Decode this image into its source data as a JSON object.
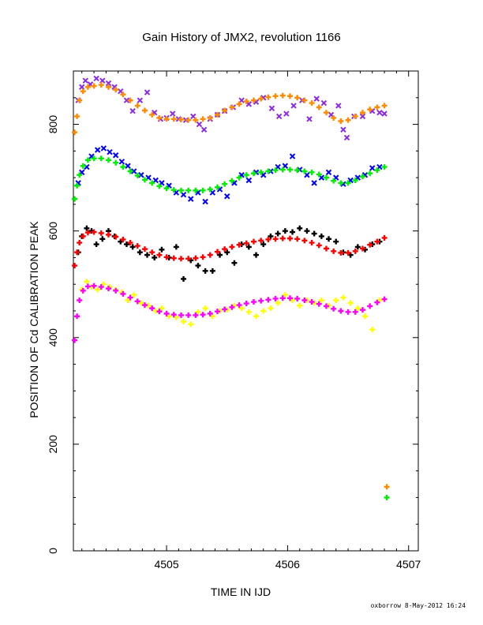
{
  "chart_data": {
    "type": "scatter",
    "title": "Gain History of JMX2, revolution 1166",
    "xlabel": "TIME IN IJD",
    "ylabel": "POSITION OF Cd CALIBRATION PEAK",
    "xlim": [
      4504.23,
      4507.08
    ],
    "ylim": [
      0,
      900
    ],
    "x_ticks": [
      4505,
      4506,
      4507
    ],
    "y_ticks": [
      0,
      200,
      400,
      600,
      800
    ],
    "footer": "oxborrow  8-May-2012 16:24",
    "series": [
      {
        "color": "#8a2be2",
        "marker": "x",
        "x": [
          4504.27,
          4504.3,
          4504.33,
          4504.37,
          4504.42,
          4504.47,
          4504.52,
          4504.57,
          4504.62,
          4504.67,
          4504.72,
          4504.78,
          4504.84,
          4504.9,
          4504.95,
          4505.0,
          4505.05,
          4505.1,
          4505.16,
          4505.22,
          4505.27,
          4505.31,
          4505.36,
          4505.42,
          4505.48,
          4505.55,
          4505.62,
          4505.68,
          4505.74,
          4505.8,
          4505.87,
          4505.93,
          4505.99,
          4506.05,
          4506.12,
          4506.18,
          4506.24,
          4506.3,
          4506.36,
          4506.42,
          4506.46,
          4506.49,
          4506.55,
          4506.62,
          4506.7,
          4506.76,
          4506.8
        ],
        "y": [
          845,
          870,
          882,
          875,
          886,
          882,
          877,
          870,
          862,
          845,
          825,
          845,
          860,
          822,
          810,
          812,
          820,
          810,
          808,
          815,
          800,
          790,
          810,
          818,
          825,
          832,
          845,
          838,
          842,
          850,
          830,
          815,
          820,
          835,
          845,
          810,
          848,
          840,
          818,
          835,
          790,
          775,
          815,
          815,
          825,
          822,
          820
        ]
      },
      {
        "color": "#ff8c00",
        "marker": "+",
        "x": [
          4504.24,
          4504.26,
          4504.28,
          4504.31,
          4504.35,
          4504.4,
          4504.46,
          4504.52,
          4504.58,
          4504.64,
          4504.7,
          4504.76,
          4504.82,
          4504.88,
          4504.94,
          4505.0,
          4505.06,
          4505.12,
          4505.18,
          4505.24,
          4505.3,
          4505.36,
          4505.42,
          4505.48,
          4505.54,
          4505.6,
          4505.66,
          4505.72,
          4505.78,
          4505.84,
          4505.9,
          4505.96,
          4506.02,
          4506.08,
          4506.14,
          4506.2,
          4506.26,
          4506.32,
          4506.38,
          4506.44,
          4506.5,
          4506.56,
          4506.62,
          4506.68,
          4506.74,
          4506.8,
          4506.82
        ],
        "y": [
          785,
          815,
          845,
          862,
          870,
          872,
          874,
          870,
          865,
          856,
          845,
          835,
          826,
          818,
          812,
          810,
          810,
          809,
          808,
          808,
          810,
          812,
          818,
          826,
          832,
          838,
          843,
          845,
          848,
          851,
          853,
          854,
          853,
          850,
          845,
          840,
          832,
          822,
          812,
          806,
          808,
          815,
          822,
          828,
          832,
          835,
          120
        ]
      },
      {
        "color": "#0000ff",
        "marker": "x",
        "x": [
          4504.27,
          4504.3,
          4504.34,
          4504.38,
          4504.43,
          4504.48,
          4504.53,
          4504.58,
          4504.63,
          4504.68,
          4504.73,
          4504.79,
          4504.85,
          4504.91,
          4504.96,
          4505.02,
          4505.08,
          4505.14,
          4505.2,
          4505.26,
          4505.32,
          4505.38,
          4505.44,
          4505.5,
          4505.56,
          4505.62,
          4505.68,
          4505.74,
          4505.8,
          4505.86,
          4505.92,
          4505.98,
          4506.04,
          4506.1,
          4506.16,
          4506.22,
          4506.28,
          4506.34,
          4506.4,
          4506.46,
          4506.52,
          4506.58,
          4506.64,
          4506.7,
          4506.76
        ],
        "y": [
          690,
          710,
          720,
          740,
          752,
          755,
          748,
          742,
          730,
          722,
          712,
          705,
          700,
          695,
          690,
          685,
          672,
          668,
          660,
          672,
          655,
          672,
          678,
          665,
          690,
          705,
          695,
          710,
          705,
          712,
          720,
          722,
          740,
          715,
          705,
          690,
          700,
          710,
          700,
          688,
          695,
          700,
          705,
          718,
          720
        ]
      },
      {
        "color": "#00ee00",
        "marker": "+",
        "x": [
          4504.24,
          4504.26,
          4504.28,
          4504.31,
          4504.35,
          4504.4,
          4504.46,
          4504.52,
          4504.58,
          4504.64,
          4504.7,
          4504.76,
          4504.82,
          4504.88,
          4504.94,
          4505.0,
          4505.06,
          4505.12,
          4505.18,
          4505.24,
          4505.3,
          4505.36,
          4505.42,
          4505.48,
          4505.54,
          4505.6,
          4505.66,
          4505.72,
          4505.78,
          4505.84,
          4505.9,
          4505.96,
          4506.02,
          4506.08,
          4506.14,
          4506.2,
          4506.26,
          4506.32,
          4506.38,
          4506.44,
          4506.5,
          4506.56,
          4506.62,
          4506.68,
          4506.74,
          4506.8,
          4506.82
        ],
        "y": [
          660,
          685,
          705,
          722,
          733,
          736,
          736,
          733,
          728,
          720,
          712,
          704,
          696,
          690,
          684,
          680,
          677,
          676,
          676,
          676,
          676,
          678,
          682,
          688,
          694,
          700,
          705,
          708,
          710,
          712,
          714,
          715,
          715,
          714,
          712,
          710,
          706,
          700,
          694,
          690,
          690,
          695,
          702,
          708,
          714,
          720,
          100
        ]
      },
      {
        "color": "#000000",
        "marker": "+",
        "x": [
          4504.27,
          4504.3,
          4504.34,
          4504.38,
          4504.42,
          4504.47,
          4504.52,
          4504.57,
          4504.62,
          4504.67,
          4504.72,
          4504.78,
          4504.84,
          4504.9,
          4504.96,
          4505.02,
          4505.08,
          4505.14,
          4505.2,
          4505.26,
          4505.32,
          4505.38,
          4505.44,
          4505.5,
          4505.56,
          4505.62,
          4505.68,
          4505.74,
          4505.8,
          4505.86,
          4505.92,
          4505.98,
          4506.04,
          4506.1,
          4506.16,
          4506.22,
          4506.28,
          4506.34,
          4506.4,
          4506.46,
          4506.52,
          4506.58,
          4506.64,
          4506.7,
          4506.76
        ],
        "y": [
          560,
          590,
          605,
          600,
          575,
          585,
          600,
          590,
          580,
          575,
          570,
          560,
          555,
          550,
          565,
          550,
          570,
          510,
          545,
          535,
          525,
          525,
          555,
          560,
          540,
          575,
          570,
          555,
          575,
          590,
          595,
          600,
          598,
          605,
          600,
          595,
          590,
          585,
          580,
          560,
          555,
          570,
          565,
          575,
          580
        ]
      },
      {
        "color": "#ff0000",
        "marker": "+",
        "x": [
          4504.24,
          4504.26,
          4504.28,
          4504.31,
          4504.35,
          4504.4,
          4504.46,
          4504.52,
          4504.58,
          4504.64,
          4504.7,
          4504.76,
          4504.82,
          4504.88,
          4504.94,
          4505.0,
          4505.06,
          4505.12,
          4505.18,
          4505.24,
          4505.3,
          4505.36,
          4505.42,
          4505.48,
          4505.54,
          4505.6,
          4505.66,
          4505.72,
          4505.78,
          4505.84,
          4505.9,
          4505.96,
          4506.02,
          4506.08,
          4506.14,
          4506.2,
          4506.26,
          4506.32,
          4506.38,
          4506.44,
          4506.5,
          4506.56,
          4506.62,
          4506.68,
          4506.74,
          4506.8
        ],
        "y": [
          535,
          560,
          578,
          590,
          597,
          598,
          596,
          593,
          589,
          584,
          578,
          572,
          566,
          560,
          555,
          551,
          549,
          548,
          548,
          549,
          551,
          555,
          561,
          566,
          570,
          574,
          577,
          580,
          582,
          584,
          585,
          586,
          586,
          585,
          582,
          578,
          573,
          567,
          562,
          559,
          559,
          562,
          567,
          574,
          580,
          587
        ]
      },
      {
        "color": "#ffff00",
        "marker": "+",
        "x": [
          4504.3,
          4504.34,
          4504.38,
          4504.43,
          4504.48,
          4504.53,
          4504.58,
          4504.63,
          4504.68,
          4504.73,
          4504.79,
          4504.85,
          4504.91,
          4504.96,
          4505.02,
          4505.08,
          4505.14,
          4505.2,
          4505.26,
          4505.32,
          4505.38,
          4505.44,
          4505.5,
          4505.56,
          4505.62,
          4505.68,
          4505.74,
          4505.8,
          4505.86,
          4505.92,
          4505.98,
          4506.04,
          4506.1,
          4506.16,
          4506.22,
          4506.28,
          4506.34,
          4506.4,
          4506.46,
          4506.52,
          4506.58,
          4506.64,
          4506.7,
          4506.76
        ],
        "y": [
          490,
          505,
          495,
          490,
          500,
          495,
          490,
          485,
          470,
          480,
          465,
          460,
          450,
          455,
          440,
          438,
          430,
          425,
          448,
          455,
          440,
          450,
          452,
          460,
          455,
          448,
          440,
          450,
          455,
          465,
          480,
          470,
          460,
          470,
          465,
          470,
          460,
          470,
          475,
          465,
          455,
          440,
          415,
          470
        ]
      },
      {
        "color": "#ff00ff",
        "marker": "+",
        "x": [
          4504.24,
          4504.26,
          4504.28,
          4504.31,
          4504.35,
          4504.4,
          4504.46,
          4504.52,
          4504.58,
          4504.64,
          4504.7,
          4504.76,
          4504.82,
          4504.88,
          4504.94,
          4505.0,
          4505.06,
          4505.12,
          4505.18,
          4505.24,
          4505.3,
          4505.36,
          4505.42,
          4505.48,
          4505.54,
          4505.6,
          4505.66,
          4505.72,
          4505.78,
          4505.84,
          4505.9,
          4505.96,
          4506.02,
          4506.08,
          4506.14,
          4506.2,
          4506.26,
          4506.32,
          4506.38,
          4506.44,
          4506.5,
          4506.56,
          4506.62,
          4506.68,
          4506.74,
          4506.8
        ],
        "y": [
          395,
          440,
          470,
          488,
          496,
          497,
          495,
          492,
          488,
          482,
          475,
          468,
          461,
          455,
          449,
          445,
          443,
          442,
          442,
          442,
          443,
          445,
          449,
          453,
          457,
          461,
          464,
          467,
          469,
          471,
          473,
          474,
          474,
          473,
          470,
          467,
          463,
          459,
          454,
          450,
          448,
          448,
          452,
          459,
          466,
          472
        ]
      }
    ]
  }
}
